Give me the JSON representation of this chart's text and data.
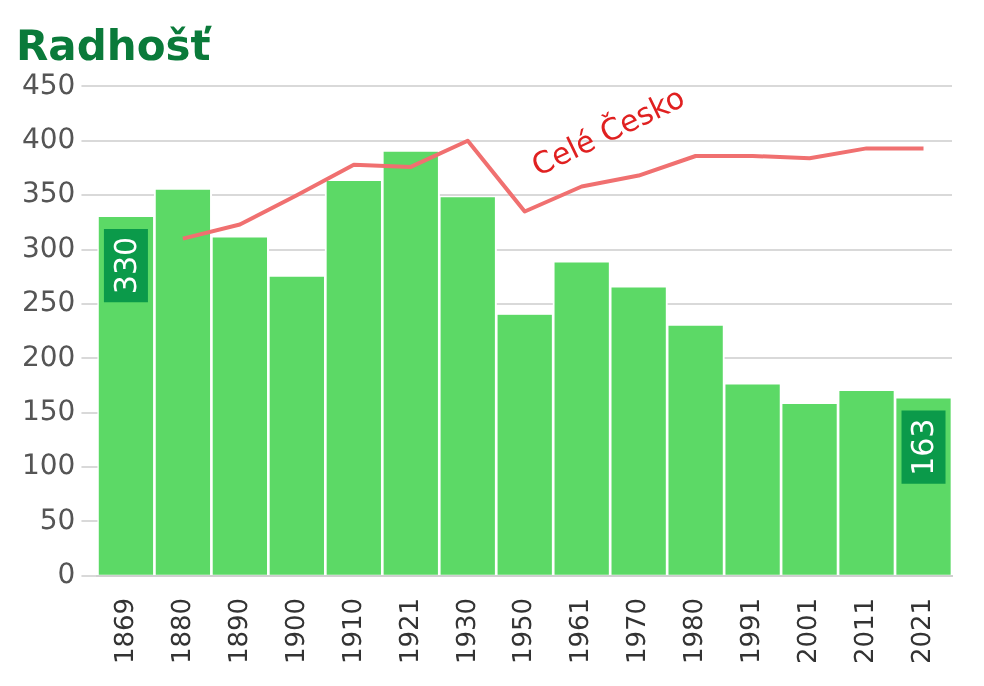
{
  "chart_data": {
    "type": "bar",
    "title": "Radhošť",
    "categories": [
      "1869",
      "1880",
      "1890",
      "1900",
      "1910",
      "1921",
      "1930",
      "1950",
      "1961",
      "1970",
      "1980",
      "1991",
      "2001",
      "2011",
      "2021"
    ],
    "series": [
      {
        "color": "#5cd966",
        "values": [
          330,
          355,
          311,
          275,
          363,
          390,
          348,
          240,
          288,
          265,
          230,
          176,
          158,
          170,
          163
        ],
        "value_labels": [
          "330",
          null,
          null,
          null,
          null,
          null,
          null,
          null,
          null,
          null,
          null,
          null,
          null,
          null,
          "163"
        ]
      },
      {
        "type": "line",
        "name": "Celé Česko",
        "color": "#f07070",
        "values": [
          null,
          310,
          323,
          350,
          378,
          376,
          400,
          335,
          358,
          368,
          386,
          386,
          384,
          393,
          393
        ]
      }
    ],
    "ylim": [
      0,
      450
    ],
    "yticks": [
      0,
      50,
      100,
      150,
      200,
      250,
      300,
      350,
      400,
      450
    ],
    "grid": "y",
    "legend": false,
    "marker": "none",
    "line_style": "solid"
  }
}
